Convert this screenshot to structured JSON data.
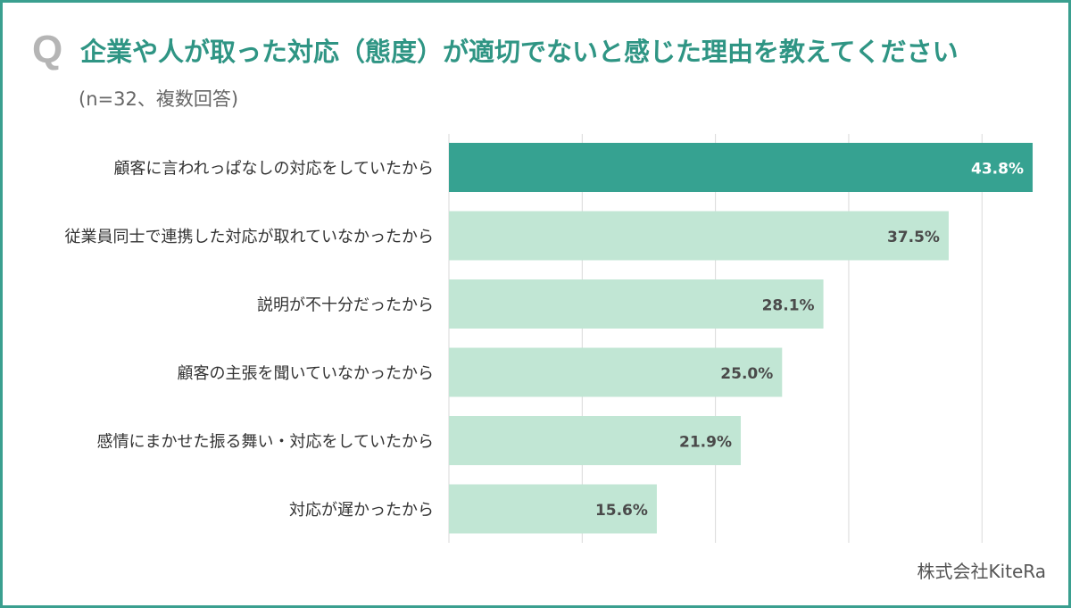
{
  "header": {
    "q_mark": "Q",
    "title": "企業や人が取った対応（態度）が適切でないと感じた理由を教えてください",
    "subtitle": "(n=32、複数回答)"
  },
  "source": "株式会社KiteRa",
  "colors": {
    "highlight": "#36a291",
    "bar": "#c1e6d4",
    "grid": "#d9d9d9",
    "frame": "#3a9f8f",
    "title": "#2f9584"
  },
  "chart_data": {
    "type": "bar",
    "orientation": "horizontal",
    "categories": [
      "顧客に言われっぱなしの対応をしていたから",
      "従業員同士で連携した対応が取れていなかったから",
      "説明が不十分だったから",
      "顧客の主張を聞いていなかったから",
      "感情にまかせた振る舞い・対応をしていたから",
      "対応が遅かったから"
    ],
    "values": [
      43.8,
      37.5,
      28.1,
      25.0,
      21.9,
      15.6
    ],
    "data_labels": [
      "43.8%",
      "37.5%",
      "28.1%",
      "25.0%",
      "21.9%",
      "15.6%"
    ],
    "unit": "%",
    "xlim": [
      0,
      44
    ],
    "grid": true,
    "highlight_index": 0
  }
}
